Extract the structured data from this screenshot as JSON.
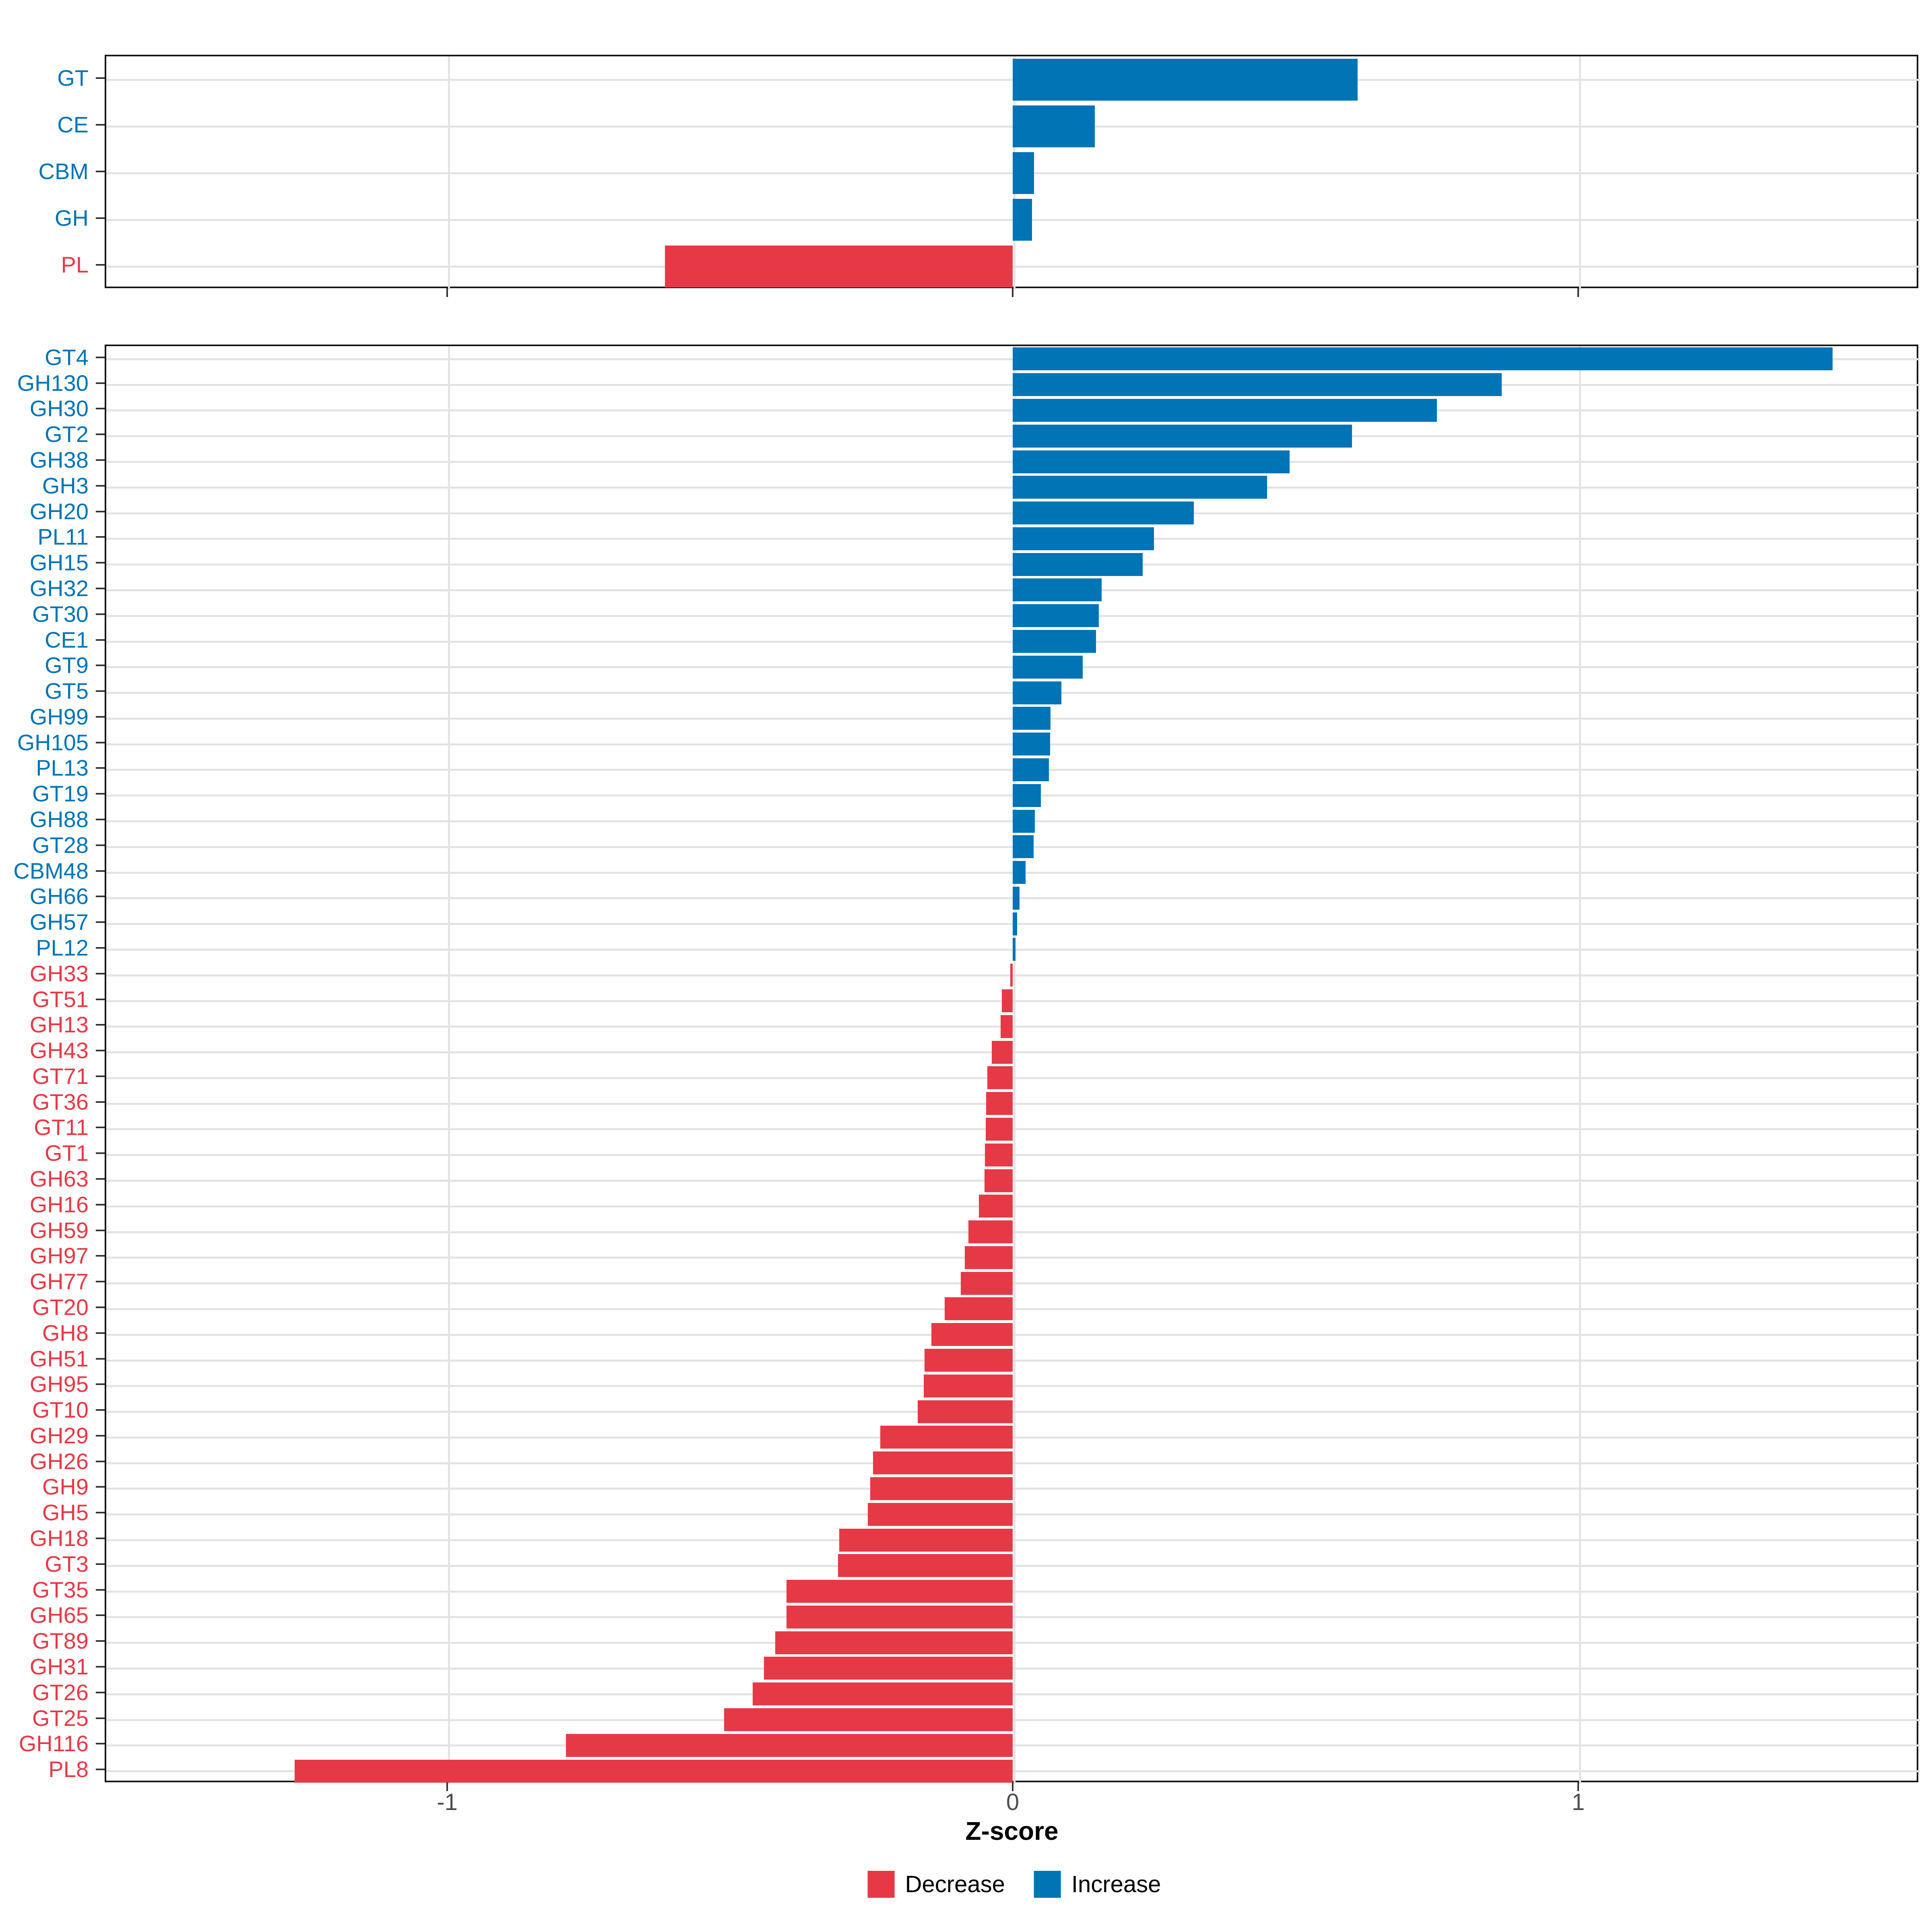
{
  "xlabel": "Z-score",
  "legend": [
    {
      "label": "Decrease",
      "color": "#e63946"
    },
    {
      "label": "Increase",
      "color": "#0074b5"
    }
  ],
  "colors": {
    "increase": "#0074b5",
    "decrease": "#e63946",
    "grid": "#e3e3e3",
    "panel_border": "#161616",
    "tick": "#333333",
    "tick_label": "#4d4d4d"
  },
  "chart_data": [
    {
      "panel": "enzyme-class",
      "type": "bar",
      "orientation": "horizontal",
      "xlabel": "Z-score",
      "xlim": [
        -1.6,
        1.6
      ],
      "x_ticks": [
        -1,
        0,
        1
      ],
      "x_tick_labels": [
        "-1",
        "0",
        "1"
      ],
      "show_x_tick_labels": false,
      "grid": true,
      "categories": [
        "GT",
        "CE",
        "CBM",
        "GH",
        "PL"
      ],
      "values": [
        0.61,
        0.145,
        0.038,
        0.034,
        -0.615
      ],
      "directions": [
        "Increase",
        "Increase",
        "Increase",
        "Increase",
        "Decrease"
      ]
    },
    {
      "panel": "cazyme-family",
      "type": "bar",
      "orientation": "horizontal",
      "xlabel": "Z-score",
      "xlim": [
        -1.6,
        1.6
      ],
      "x_ticks": [
        -1,
        0,
        1
      ],
      "x_tick_labels": [
        "-1",
        "0",
        "1"
      ],
      "show_x_tick_labels": true,
      "grid": true,
      "categories": [
        "GT4",
        "GH130",
        "GH30",
        "GT2",
        "GH38",
        "GH3",
        "GH20",
        "PL11",
        "GH15",
        "GH32",
        "GT30",
        "CE1",
        "GT9",
        "GT5",
        "GH99",
        "GH105",
        "PL13",
        "GT19",
        "GH88",
        "GT28",
        "CBM48",
        "GH66",
        "GH57",
        "PL12",
        "GH33",
        "GT51",
        "GH13",
        "GH43",
        "GT71",
        "GT36",
        "GT11",
        "GT1",
        "GH63",
        "GH16",
        "GH59",
        "GH97",
        "GH77",
        "GT20",
        "GH8",
        "GH51",
        "GH95",
        "GT10",
        "GH29",
        "GH26",
        "GH9",
        "GH5",
        "GH18",
        "GT3",
        "GT35",
        "GH65",
        "GT89",
        "GH31",
        "GT26",
        "GT25",
        "GH116",
        "PL8"
      ],
      "values": [
        1.45,
        0.865,
        0.75,
        0.6,
        0.49,
        0.45,
        0.32,
        0.25,
        0.23,
        0.157,
        0.152,
        0.147,
        0.124,
        0.086,
        0.067,
        0.066,
        0.064,
        0.05,
        0.039,
        0.037,
        0.023,
        0.012,
        0.008,
        0.005,
        -0.004,
        -0.019,
        -0.021,
        -0.037,
        -0.045,
        -0.047,
        -0.048,
        -0.049,
        -0.05,
        -0.06,
        -0.078,
        -0.085,
        -0.092,
        -0.12,
        -0.144,
        -0.156,
        -0.157,
        -0.168,
        -0.234,
        -0.247,
        -0.252,
        -0.256,
        -0.307,
        -0.309,
        -0.4,
        -0.4,
        -0.42,
        -0.44,
        -0.46,
        -0.51,
        -0.79,
        -1.27
      ],
      "directions": [
        "Increase",
        "Increase",
        "Increase",
        "Increase",
        "Increase",
        "Increase",
        "Increase",
        "Increase",
        "Increase",
        "Increase",
        "Increase",
        "Increase",
        "Increase",
        "Increase",
        "Increase",
        "Increase",
        "Increase",
        "Increase",
        "Increase",
        "Increase",
        "Increase",
        "Increase",
        "Increase",
        "Increase",
        "Decrease",
        "Decrease",
        "Decrease",
        "Decrease",
        "Decrease",
        "Decrease",
        "Decrease",
        "Decrease",
        "Decrease",
        "Decrease",
        "Decrease",
        "Decrease",
        "Decrease",
        "Decrease",
        "Decrease",
        "Decrease",
        "Decrease",
        "Decrease",
        "Decrease",
        "Decrease",
        "Decrease",
        "Decrease",
        "Decrease",
        "Decrease",
        "Decrease",
        "Decrease",
        "Decrease",
        "Decrease",
        "Decrease",
        "Decrease",
        "Decrease",
        "Decrease"
      ]
    }
  ]
}
